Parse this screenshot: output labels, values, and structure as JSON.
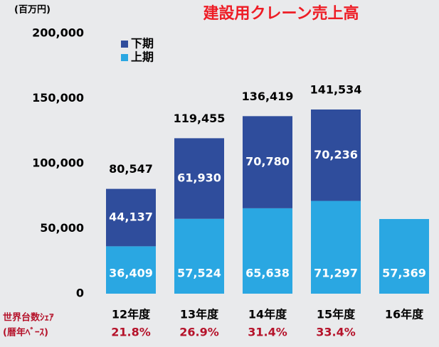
{
  "chart_data": {
    "type": "stacked_bar",
    "title": "建設用クレーン売上高",
    "unit_label": "(百万円)",
    "categories": [
      "12年度",
      "13年度",
      "14年度",
      "15年度",
      "16年度"
    ],
    "series": [
      {
        "name": "上期",
        "color": "#2aa7e2",
        "values": [
          36409,
          57524,
          65638,
          71297,
          57369
        ],
        "value_labels": [
          "36,409",
          "57,524",
          "65,638",
          "71,297",
          "57,369"
        ]
      },
      {
        "name": "下期",
        "color": "#2f4d9c",
        "values": [
          44137,
          61930,
          70780,
          70236,
          null
        ],
        "value_labels": [
          "44,137",
          "61,930",
          "70,780",
          "70,236",
          null
        ]
      }
    ],
    "totals": [
      80547,
      119455,
      136419,
      141534,
      null
    ],
    "total_labels": [
      "80,547",
      "119,455",
      "136,419",
      "141,534",
      null
    ],
    "share": {
      "label": [
        "世界台数ｼｪｱ",
        "(暦年ﾍﾞｰｽ)"
      ],
      "values": [
        21.8,
        26.9,
        31.4,
        33.4,
        null
      ],
      "value_labels": [
        "21.8%",
        "26.9%",
        "31.4%",
        "33.4%",
        null
      ]
    },
    "ylim": [
      0,
      200000
    ],
    "yticks": [
      {
        "value": 0,
        "label": "0"
      },
      {
        "value": 50000,
        "label": "50,000"
      },
      {
        "value": 100000,
        "label": "100,000"
      },
      {
        "value": 150000,
        "label": "150,000"
      },
      {
        "value": 200000,
        "label": "200,000"
      }
    ],
    "legend": "top-left"
  }
}
